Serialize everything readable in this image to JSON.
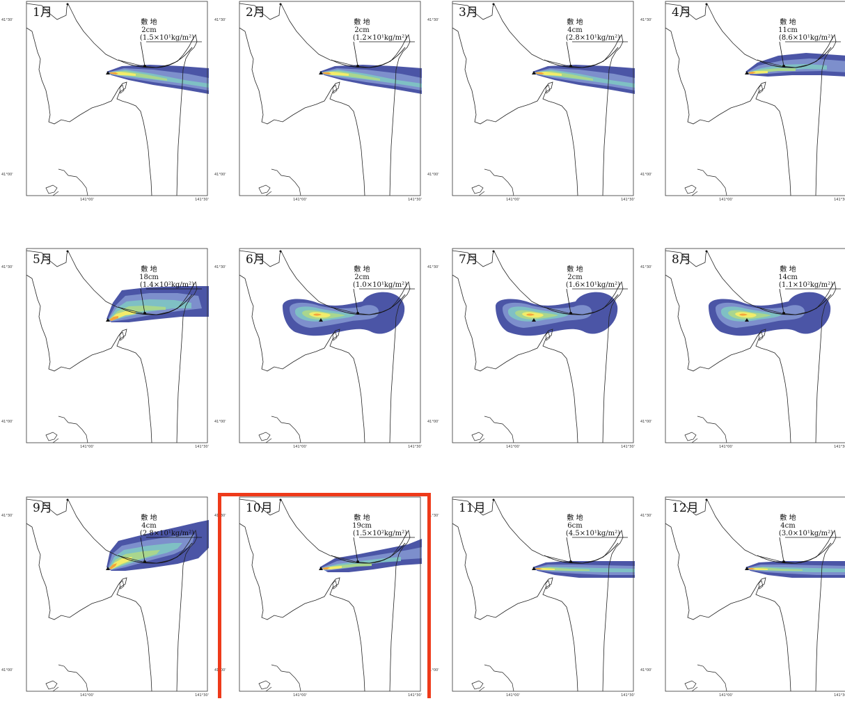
{
  "grid": {
    "lat_top": "41°30'",
    "lat_bottom": "41°00'",
    "lon_mid": "141°00'",
    "lon_right": "141°30'"
  },
  "site_name": "敷 地",
  "highlight_color": "#ee3a1a",
  "highlighted_month": "10月",
  "palette": [
    "#4b55a6",
    "#7d8fcc",
    "#7fc0c4",
    "#a9d68e",
    "#f2ec6a",
    "#f5a33c",
    "#d8301b"
  ],
  "panels": [
    {
      "month": "1月",
      "thickness": "2cm",
      "load": "(1.5×10¹kg/m²)",
      "plume": "east"
    },
    {
      "month": "2月",
      "thickness": "2cm",
      "load": "(1.2×10¹kg/m²)",
      "plume": "east"
    },
    {
      "month": "3月",
      "thickness": "4cm",
      "load": "(2.8×10¹kg/m²)",
      "plume": "east"
    },
    {
      "month": "4月",
      "thickness": "11cm",
      "load": "(8.6×10¹kg/m²)",
      "plume": "east-wide"
    },
    {
      "month": "5月",
      "thickness": "18cm",
      "load": "(1.4×10²kg/m²)",
      "plume": "east-fan"
    },
    {
      "month": "6月",
      "thickness": "2cm",
      "load": "(1.0×10¹kg/m²)",
      "plume": "dumbbell"
    },
    {
      "month": "7月",
      "thickness": "2cm",
      "load": "(1.6×10¹kg/m²)",
      "plume": "dumbbell"
    },
    {
      "month": "8月",
      "thickness": "14cm",
      "load": "(1.1×10²kg/m²)",
      "plume": "dumbbell"
    },
    {
      "month": "9月",
      "thickness": "4cm",
      "load": "(2.8×10¹kg/m²)",
      "plume": "northeast"
    },
    {
      "month": "10月",
      "thickness": "19cm",
      "load": "(1.5×10²kg/m²)",
      "plume": "east-up"
    },
    {
      "month": "11月",
      "thickness": "6cm",
      "load": "(4.5×10¹kg/m²)",
      "plume": "east-thin"
    },
    {
      "month": "12月",
      "thickness": "4cm",
      "load": "(3.0×10¹kg/m²)",
      "plume": "east-thin"
    }
  ]
}
